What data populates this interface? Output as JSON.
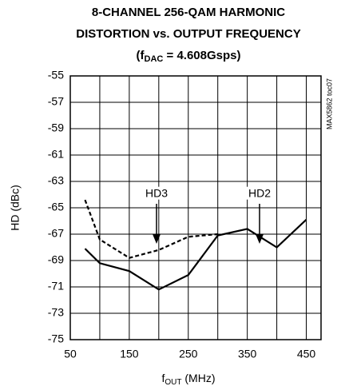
{
  "chart_data": {
    "type": "line",
    "title": [
      "8-CHANNEL 256-QAM HARMONIC",
      "DISTORTION vs. OUTPUT FREQUENCY",
      [
        "(f",
        "DAC",
        " = 4.608Gsps)"
      ]
    ],
    "xlabel": [
      "f",
      "OUT",
      " (MHz)"
    ],
    "ylabel": "HD (dBc)",
    "side_note": "MAX5862 toc07",
    "series": [
      {
        "name": "HD2",
        "color": "#000000",
        "dash": false,
        "x": [
          75,
          100,
          150,
          200,
          250,
          300,
          350,
          400,
          450
        ],
        "values": [
          -68.1,
          -69.2,
          -69.8,
          -71.2,
          -70.1,
          -67.1,
          -66.6,
          -68.0,
          -65.9
        ]
      },
      {
        "name": "HD3",
        "color": "#000000",
        "dash": true,
        "x": [
          75,
          100,
          150,
          200,
          250,
          300
        ],
        "values": [
          -64.4,
          -67.4,
          -68.8,
          -68.2,
          -67.2,
          -67.0
        ]
      }
    ],
    "xlim": [
      50,
      475
    ],
    "xticks": [
      50,
      150,
      250,
      350,
      450
    ],
    "xminor": [
      100,
      200,
      300,
      400
    ],
    "ylim": [
      -75,
      -55
    ],
    "yticks": [
      -75,
      -73,
      -71,
      -69,
      -67,
      -65,
      -63,
      -61,
      -59,
      -57,
      -55
    ],
    "grid": true
  }
}
